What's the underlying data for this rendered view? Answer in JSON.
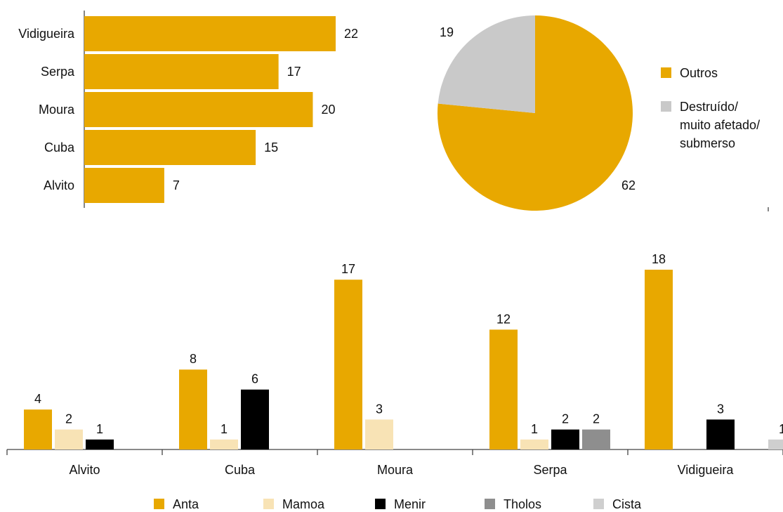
{
  "colors": {
    "gold": "#e8a800",
    "mamoa": "#f8e3b5",
    "menir": "#000000",
    "tholos": "#8e8e8e",
    "cista": "#cfcfcf",
    "pie_other": "#c9c9c9",
    "axis": "#444444"
  },
  "chart_data": [
    {
      "type": "bar",
      "orientation": "horizontal",
      "categories": [
        "Vidigueira",
        "Serpa",
        "Moura",
        "Cuba",
        "Alvito"
      ],
      "values": [
        22,
        17,
        20,
        15,
        7
      ],
      "data_labels": [
        "22",
        "17",
        "20",
        "15",
        "7"
      ],
      "xlim": [
        0,
        22
      ],
      "grid": false
    },
    {
      "type": "pie",
      "slices": [
        {
          "label": "Outros",
          "value": 62,
          "value_label": "62",
          "color": "#e8a800"
        },
        {
          "label": "Destruído/ muito afetado/ submerso",
          "value": 19,
          "value_label": "19",
          "color": "#c9c9c9"
        }
      ],
      "legend": [
        {
          "label_lines": [
            "Outros"
          ],
          "color": "#e8a800"
        },
        {
          "label_lines": [
            "Destruído/",
            "muito afetado/",
            "submerso"
          ],
          "color": "#c9c9c9"
        }
      ],
      "legend_position": "right"
    },
    {
      "type": "bar",
      "orientation": "vertical",
      "categories": [
        "Alvito",
        "Cuba",
        "Moura",
        "Serpa",
        "Vidigueira"
      ],
      "series": [
        {
          "name": "Anta",
          "color": "#e8a800",
          "values": [
            4,
            8,
            17,
            12,
            18
          ]
        },
        {
          "name": "Mamoa",
          "color": "#f8e3b5",
          "values": [
            2,
            1,
            3,
            1,
            0
          ]
        },
        {
          "name": "Menir",
          "color": "#000000",
          "values": [
            1,
            6,
            0,
            2,
            3
          ]
        },
        {
          "name": "Tholos",
          "color": "#8e8e8e",
          "values": [
            0,
            0,
            0,
            2,
            0
          ]
        },
        {
          "name": "Cista",
          "color": "#cfcfcf",
          "values": [
            0,
            0,
            0,
            0,
            1
          ]
        }
      ],
      "ylim": [
        0,
        18
      ],
      "grid": false,
      "legend_position": "bottom"
    }
  ]
}
